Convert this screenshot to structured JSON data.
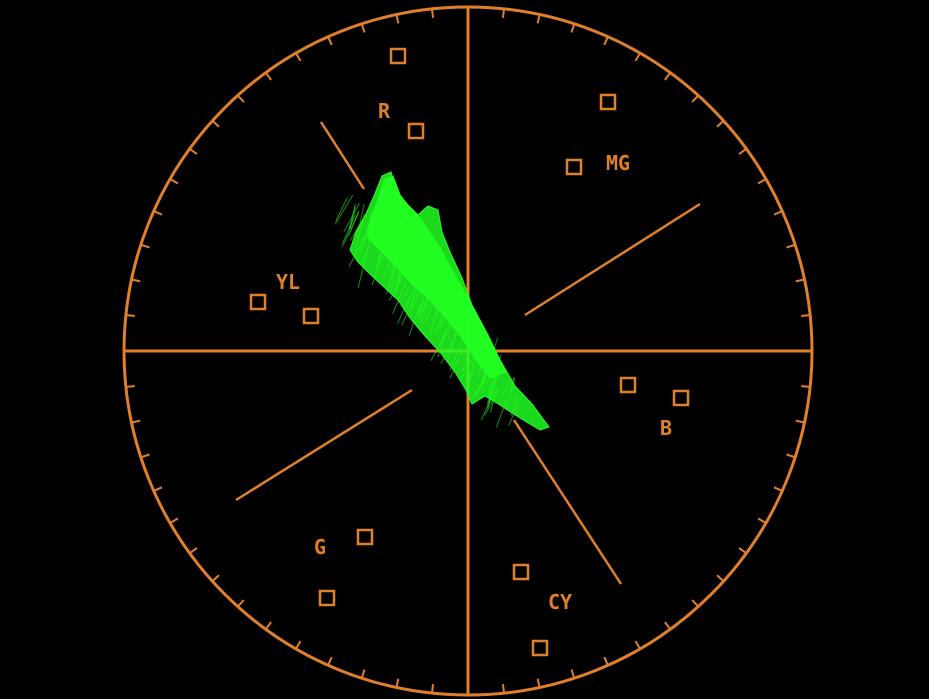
{
  "scope": {
    "type": "vectorscope",
    "graticule_color": "#E0802A",
    "trace_color": "#22FF22",
    "background": "#000000",
    "labels": {
      "r": "R",
      "mg": "MG",
      "yl": "YL",
      "b": "B",
      "g": "G",
      "cy": "CY"
    }
  }
}
